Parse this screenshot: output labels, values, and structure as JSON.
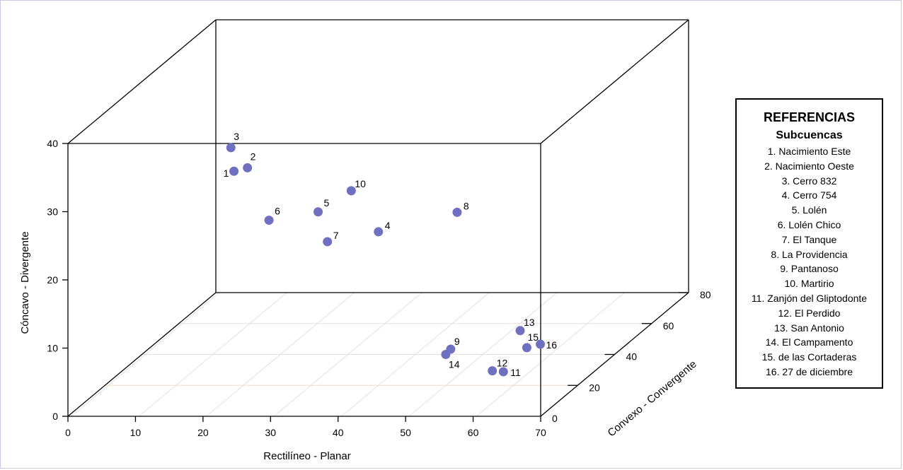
{
  "chart_data": {
    "type": "scatter3d",
    "xlabel": "Rectilíneo - Planar",
    "ylabel": "Convexo - Convergente",
    "zlabel": "Cóncavo - Divergente",
    "xlim": [
      0,
      70
    ],
    "ylim": [
      0,
      80
    ],
    "zlim": [
      0,
      40
    ],
    "x_ticks": [
      "0",
      "10",
      "20",
      "30",
      "40",
      "50",
      "60",
      "70"
    ],
    "y_ticks": [
      "0",
      "20",
      "40",
      "60",
      "80"
    ],
    "z_ticks": [
      "0",
      "10",
      "20",
      "30",
      "40"
    ],
    "point_color": "#7070c0",
    "points": [
      {
        "label": "1",
        "x": 15,
        "y": 35,
        "z": 28
      },
      {
        "label": "2",
        "x": 17,
        "y": 35,
        "z": 28.5
      },
      {
        "label": "3",
        "x": 14,
        "y": 37,
        "z": 31
      },
      {
        "label": "4",
        "x": 29,
        "y": 62,
        "z": 13
      },
      {
        "label": "5",
        "x": 25,
        "y": 44,
        "z": 20
      },
      {
        "label": "6",
        "x": 18,
        "y": 43,
        "z": 19
      },
      {
        "label": "7",
        "x": 22,
        "y": 60,
        "z": 12
      },
      {
        "label": "8",
        "x": 36,
        "y": 79,
        "z": 12
      },
      {
        "label": "9",
        "x": 46,
        "y": 39,
        "z": 1
      },
      {
        "label": "10",
        "x": 31,
        "y": 40,
        "z": 24
      },
      {
        "label": "11",
        "x": 59,
        "y": 20,
        "z": 2
      },
      {
        "label": "12",
        "x": 56,
        "y": 25,
        "z": 1
      },
      {
        "label": "13",
        "x": 53,
        "y": 51,
        "z": 1
      },
      {
        "label": "14",
        "x": 45,
        "y": 40,
        "z": 0
      },
      {
        "label": "15",
        "x": 57,
        "y": 40,
        "z": 1
      },
      {
        "label": "16",
        "x": 59,
        "y": 40,
        "z": 1.5
      }
    ]
  },
  "legend": {
    "title": "REFERENCIAS",
    "subtitle": "Subcuencas",
    "items": [
      "1. Nacimiento Este",
      "2. Nacimiento Oeste",
      "3. Cerro 832",
      "4. Cerro 754",
      "5. Lolén",
      "6. Lolén Chico",
      "7. El Tanque",
      "8. La Providencia",
      "9. Pantanoso",
      "10. Martirio",
      "11. Zanjón del Gliptodonte",
      "12. El Perdido",
      "13. San Antonio",
      "14. El Campamento",
      "15. de las Cortaderas",
      "16. 27 de diciembre"
    ]
  }
}
